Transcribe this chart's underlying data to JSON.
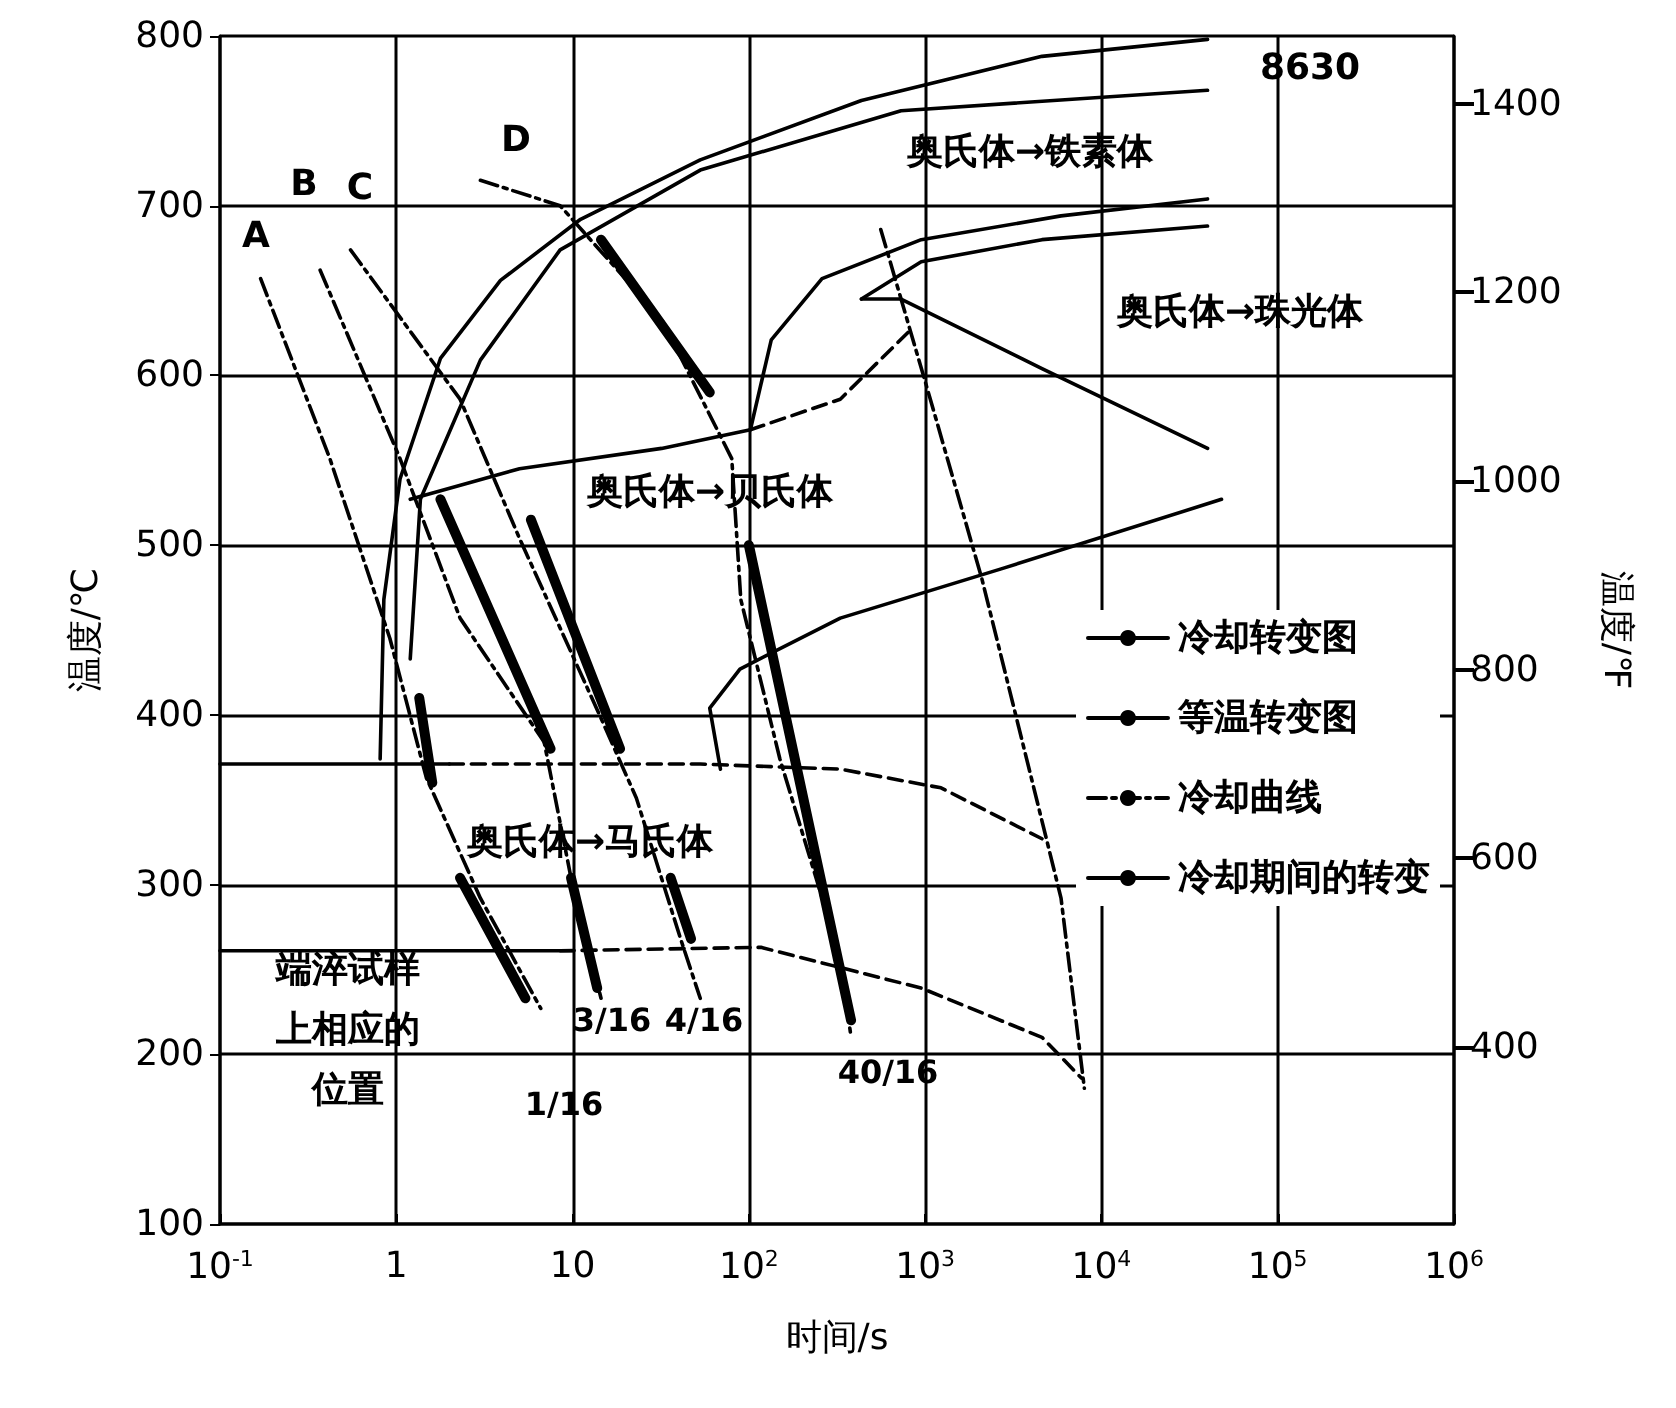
{
  "chart_data": {
    "type": "line",
    "xlabel": "时间/s",
    "ylabel": "温度/℃",
    "y2label": "温度/℉",
    "log": "x",
    "grid": true,
    "legend": "right",
    "marker": "none",
    "xlim": [
      0.1,
      1000000
    ],
    "xticks": [
      {
        "value": 0.1,
        "label": "10$^{-1}$"
      },
      {
        "value": 1,
        "label": "1"
      },
      {
        "value": 10,
        "label": "10"
      },
      {
        "value": 100,
        "label": "10$^{2}$"
      },
      {
        "value": 1000,
        "label": "10$^{3}$"
      },
      {
        "value": 10000,
        "label": "10$^{4}$"
      },
      {
        "value": 100000,
        "label": "10$^{5}$"
      },
      {
        "value": 1000000,
        "label": "10$^{6}$"
      }
    ],
    "ylim": [
      100,
      800
    ],
    "yticks": [
      100,
      200,
      300,
      400,
      500,
      600,
      700,
      800
    ],
    "y2lim": [
      212,
      1472
    ],
    "y2ticks": [
      400,
      600,
      800,
      1000,
      1200,
      1400
    ],
    "series": [
      {
        "name": "冷却转变图",
        "color": "#000000",
        "line_style": "solid",
        "x": [
          0.81,
          0.85,
          1.05,
          1.78,
          3.9,
          11.1,
          53,
          435,
          4600,
          40000
        ],
        "values": [
          374,
          468,
          539,
          610,
          656,
          692,
          727,
          762,
          788,
          798
        ]
      },
      {
        "name": "等温转变图",
        "color": "#000000",
        "line_style": "solid",
        "x": [
          69,
          60,
          89,
          330,
          2700,
          48000
        ],
        "values": [
          368,
          404,
          427,
          457,
          486,
          527
        ]
      },
      {
        "name": "冷却曲线",
        "color": "#000000",
        "line_style": "dashdot",
        "x": [
          0.17,
          0.42,
          0.92,
          1.48,
          3.0,
          6.6
        ],
        "values": [
          657,
          551,
          445,
          363,
          292,
          227
        ]
      },
      {
        "name": "冷却期间的转变",
        "color": "#000000",
        "line_style": "solid",
        "x": [
          1.35,
          1.6
        ],
        "values": [
          410,
          360
        ]
      },
      {
        "color": "#000000",
        "line_style": "dashdot",
        "x": [
          0.37,
          1.05,
          2.3,
          6.9,
          9.8,
          14.5
        ],
        "values": [
          662,
          551,
          457,
          384,
          304,
          233
        ]
      },
      {
        "color": "#000000",
        "line_style": "dashdot",
        "x": [
          0.55,
          2.3,
          5.0,
          14.5,
          23,
          41,
          53
        ],
        "values": [
          674,
          586,
          504,
          398,
          351,
          268,
          233
        ]
      },
      {
        "color": "#000000",
        "line_style": "dashdot",
        "x": [
          3.0,
          8.5,
          32,
          80,
          90,
          150,
          330,
          380
        ],
        "values": [
          715,
          700,
          633,
          551,
          468,
          374,
          257,
          210
        ]
      },
      {
        "color": "#000000",
        "line_style": "dashdot",
        "x": [
          560,
          1070,
          2100,
          4000,
          5900,
          8000
        ],
        "values": [
          686,
          586,
          480,
          363,
          292,
          180
        ]
      },
      {
        "color": "#000000",
        "line_style": "solid",
        "x": [
          1.2,
          1.37,
          3.0,
          8.5,
          53,
          730,
          40000
        ],
        "values": [
          433,
          527,
          609,
          674,
          721,
          756,
          768
        ]
      },
      {
        "color": "#000000",
        "line_style": "solid",
        "x": [
          1.2,
          5.0,
          32,
          102,
          134,
          260,
          950,
          5900,
          40000
        ],
        "values": [
          527,
          545,
          557,
          568,
          621,
          657,
          680,
          694,
          704
        ]
      },
      {
        "color": "#000000",
        "line_style": "solid",
        "x": [
          435,
          950,
          4600,
          40000
        ],
        "values": [
          645,
          667,
          680,
          688
        ]
      },
      {
        "color": "#000000",
        "line_style": "solid",
        "x": [
          435,
          730,
          4600,
          40000
        ],
        "values": [
          645,
          645,
          604,
          557
        ]
      },
      {
        "color": "#000000",
        "line_style": "solid",
        "x": [
          0.1,
          2.0
        ],
        "values": [
          371,
          371
        ]
      },
      {
        "color": "#000000",
        "line_style": "solid",
        "x": [
          0.1,
          10
        ],
        "values": [
          261,
          261
        ]
      },
      {
        "color": "#000000",
        "line_style": "dashed",
        "x": [
          2.0,
          53,
          330,
          1230,
          4600
        ],
        "values": [
          371,
          371,
          368,
          357,
          327
        ]
      },
      {
        "color": "#000000",
        "line_style": "dashed",
        "x": [
          8.5,
          117,
          950,
          4600,
          7700
        ],
        "values": [
          261,
          263,
          239,
          210,
          186
        ]
      },
      {
        "color": "#000000",
        "line_style": "dashed",
        "x": [
          102,
          330,
          830
        ],
        "values": [
          568,
          586,
          627
        ]
      },
      {
        "color": "#000000",
        "line_style": "solid",
        "x": [
          1.78,
          7.5
        ],
        "values": [
          527,
          380
        ]
      },
      {
        "color": "#000000",
        "line_style": "solid",
        "x": [
          5.8,
          18.6
        ],
        "values": [
          515,
          380
        ]
      },
      {
        "color": "#000000",
        "line_style": "solid",
        "x": [
          14.5,
          60
        ],
        "values": [
          680,
          590
        ]
      },
      {
        "color": "#000000",
        "line_style": "solid",
        "x": [
          100,
          380
        ],
        "values": [
          500,
          220
        ]
      },
      {
        "color": "#000000",
        "line_style": "solid",
        "x": [
          2.3,
          5.4
        ],
        "values": [
          304,
          233
        ]
      },
      {
        "color": "#000000",
        "line_style": "solid",
        "x": [
          9.8,
          13.8
        ],
        "values": [
          304,
          239
        ]
      },
      {
        "color": "#000000",
        "line_style": "solid",
        "x": [
          36,
          47
        ],
        "values": [
          304,
          268
        ]
      }
    ],
    "annotations": [
      "8630",
      "奥氏体→铁素体",
      "奥氏体→珠光体",
      "奥氏体→贝氏体",
      "奥氏体→马氏体",
      "A",
      "B",
      "C",
      "D",
      "端淬试样上相应的位置",
      "1/16",
      "3/16",
      "4/16",
      "40/16"
    ]
  }
}
